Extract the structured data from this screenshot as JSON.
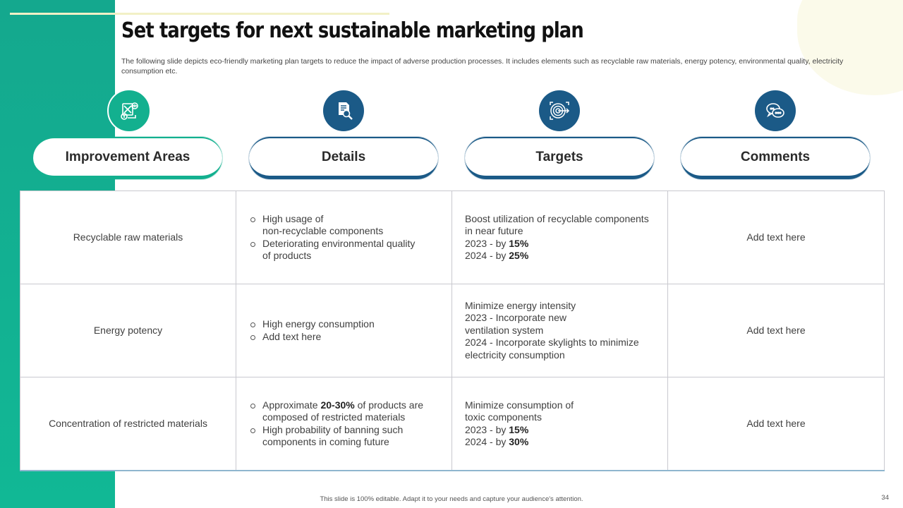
{
  "title": "Set targets for next sustainable marketing plan",
  "subtitle": "The following slide depicts eco-friendly marketing plan targets to reduce the impact of adverse production processes. It includes elements such as  recyclable raw materials, energy potency, environmental quality, electricity consumption etc.",
  "colors": {
    "teal": "#13b08f",
    "navy": "#1b5a87"
  },
  "columns": [
    {
      "label": "Improvement Areas",
      "icon": "money-chart-icon"
    },
    {
      "label": "Details",
      "icon": "document-search-icon"
    },
    {
      "label": "Targets",
      "icon": "target-arrow-icon"
    },
    {
      "label": "Comments",
      "icon": "chat-bubbles-icon"
    }
  ],
  "rows": [
    {
      "area": "Recyclable raw materials",
      "details": [
        "High usage of",
        "non-recyclable components",
        "Deteriorating environmental quality",
        "of products"
      ],
      "targets": {
        "l1": "Boost utilization of recyclable components",
        "l2": "in near future",
        "l3_pre": "2023 - by ",
        "l3_val": "15%",
        "l4_pre": "2024 - by ",
        "l4_val": "25%"
      },
      "comment": "Add text here"
    },
    {
      "area": "Energy potency",
      "details": [
        "High energy consumption",
        "Add text here"
      ],
      "targets": {
        "l1": "Minimize energy intensity",
        "l2": "2023 - Incorporate new",
        "l3": "ventilation system",
        "l4": "2024 - Incorporate skylights to minimize",
        "l5": "electricity consumption"
      },
      "comment": "Add text here"
    },
    {
      "area": "Concentration of restricted materials",
      "details": {
        "b1_pre": "Approximate ",
        "b1_bold": "20-30%",
        "b1_post": " of products are",
        "b1_l2": "composed of restricted materials",
        "b2_l1": "High probability of banning such",
        "b2_l2": "components in coming future"
      },
      "targets": {
        "l1": "Minimize consumption of",
        "l2": "toxic components",
        "l3_pre": "2023 - by ",
        "l3_val": "15%",
        "l4_pre": "2024 - by ",
        "l4_val": "30%"
      },
      "comment": "Add text here"
    }
  ],
  "footer": "This slide is 100% editable. Adapt it to your needs and capture your audience's attention.",
  "page_number": "34"
}
